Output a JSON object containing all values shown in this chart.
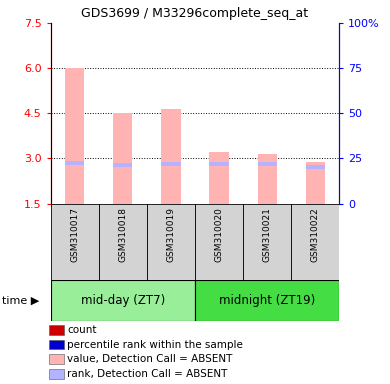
{
  "title": "GDS3699 / M33296complete_seq_at",
  "samples": [
    "GSM310017",
    "GSM310018",
    "GSM310019",
    "GSM310020",
    "GSM310021",
    "GSM310022"
  ],
  "values_absent": [
    6.0,
    4.5,
    4.65,
    3.22,
    3.15,
    2.88
  ],
  "ranks_absent": [
    2.85,
    2.78,
    2.82,
    2.82,
    2.82,
    2.72
  ],
  "ylim": [
    1.5,
    7.5
  ],
  "yticks_left": [
    1.5,
    3.0,
    4.5,
    6.0,
    7.5
  ],
  "yticks_right_pct": [
    0,
    25,
    50,
    75,
    100
  ],
  "bar_color_absent": "#ffb3b3",
  "rank_color_absent": "#b3b3ff",
  "bar_width": 0.4,
  "rank_bar_height": 0.13,
  "group1_label": "mid-day (ZT7)",
  "group2_label": "midnight (ZT19)",
  "group1_color": "#99ee99",
  "group2_color": "#44dd44",
  "sample_bg_color": "#d3d3d3",
  "legend_items": [
    {
      "label": "count",
      "color": "#cc0000"
    },
    {
      "label": "percentile rank within the sample",
      "color": "#0000cc"
    },
    {
      "label": "value, Detection Call = ABSENT",
      "color": "#ffb3b3"
    },
    {
      "label": "rank, Detection Call = ABSENT",
      "color": "#b3b3ff"
    }
  ],
  "grid_lines": [
    3.0,
    4.5,
    6.0
  ],
  "title_fontsize": 9,
  "tick_fontsize": 8,
  "sample_fontsize": 6.5,
  "group_fontsize": 8.5,
  "legend_fontsize": 7.5
}
